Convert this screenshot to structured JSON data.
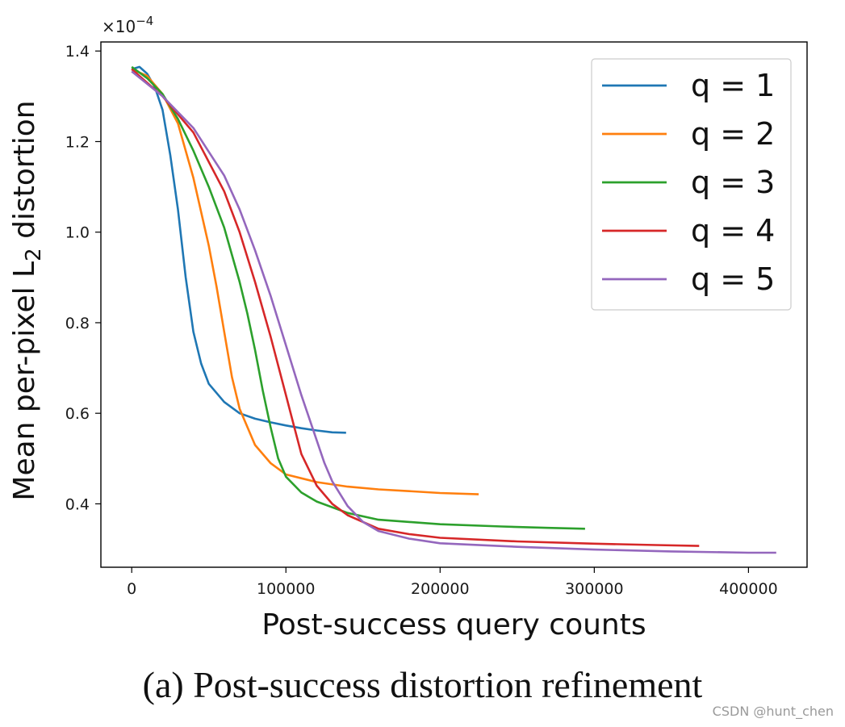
{
  "chart_data": {
    "type": "line",
    "xlabel": "Post-success query counts",
    "ylabel_main": "Mean per-pixel L",
    "ylabel_sub": "2",
    "ylabel_tail": " distortion",
    "y_scale_label": "×10",
    "y_scale_exponent": "−4",
    "xlim": [
      -20000,
      438000
    ],
    "ylim": [
      0.26,
      1.42
    ],
    "x_ticks": [
      0,
      100000,
      200000,
      300000,
      400000
    ],
    "x_tick_labels": [
      "0",
      "100000",
      "200000",
      "300000",
      "400000"
    ],
    "y_ticks": [
      0.4,
      0.6,
      0.8,
      1.0,
      1.2,
      1.4
    ],
    "y_tick_labels": [
      "0.4",
      "0.6",
      "0.8",
      "1.0",
      "1.2",
      "1.4"
    ],
    "legend_position": "upper right",
    "series": [
      {
        "name": "q = 1",
        "color": "#1f77b4",
        "x": [
          0,
          5000,
          10000,
          15000,
          20000,
          25000,
          30000,
          35000,
          40000,
          45000,
          50000,
          60000,
          70000,
          80000,
          90000,
          100000,
          110000,
          120000,
          130000,
          139000
        ],
        "y": [
          1.36,
          1.365,
          1.35,
          1.32,
          1.27,
          1.17,
          1.05,
          0.9,
          0.78,
          0.71,
          0.665,
          0.625,
          0.6,
          0.588,
          0.58,
          0.573,
          0.567,
          0.562,
          0.558,
          0.557
        ]
      },
      {
        "name": "q = 2",
        "color": "#ff7f0e",
        "x": [
          0,
          10000,
          20000,
          30000,
          40000,
          50000,
          55000,
          60000,
          65000,
          70000,
          80000,
          90000,
          100000,
          120000,
          140000,
          160000,
          180000,
          200000,
          225000
        ],
        "y": [
          1.36,
          1.345,
          1.305,
          1.24,
          1.12,
          0.97,
          0.88,
          0.78,
          0.68,
          0.61,
          0.53,
          0.49,
          0.465,
          0.448,
          0.438,
          0.432,
          0.428,
          0.424,
          0.421
        ]
      },
      {
        "name": "q = 3",
        "color": "#2ca02c",
        "x": [
          0,
          10000,
          20000,
          30000,
          40000,
          50000,
          60000,
          70000,
          75000,
          80000,
          85000,
          90000,
          95000,
          100000,
          110000,
          120000,
          140000,
          160000,
          200000,
          240000,
          270000,
          294000
        ],
        "y": [
          1.365,
          1.34,
          1.305,
          1.25,
          1.18,
          1.1,
          1.01,
          0.89,
          0.82,
          0.74,
          0.65,
          0.57,
          0.5,
          0.46,
          0.425,
          0.405,
          0.38,
          0.365,
          0.355,
          0.35,
          0.347,
          0.345
        ]
      },
      {
        "name": "q = 4",
        "color": "#d62728",
        "x": [
          0,
          20000,
          40000,
          60000,
          70000,
          80000,
          90000,
          100000,
          105000,
          110000,
          120000,
          130000,
          140000,
          160000,
          180000,
          200000,
          250000,
          300000,
          340000,
          368000
        ],
        "y": [
          1.36,
          1.3,
          1.22,
          1.09,
          1.0,
          0.89,
          0.77,
          0.64,
          0.575,
          0.51,
          0.44,
          0.4,
          0.375,
          0.345,
          0.333,
          0.325,
          0.317,
          0.312,
          0.309,
          0.307
        ]
      },
      {
        "name": "q = 5",
        "color": "#9467bd",
        "x": [
          0,
          20000,
          40000,
          60000,
          70000,
          80000,
          90000,
          100000,
          110000,
          120000,
          125000,
          130000,
          140000,
          150000,
          160000,
          180000,
          200000,
          250000,
          300000,
          350000,
          400000,
          418000
        ],
        "y": [
          1.355,
          1.3,
          1.23,
          1.125,
          1.05,
          0.96,
          0.86,
          0.75,
          0.64,
          0.54,
          0.49,
          0.45,
          0.395,
          0.36,
          0.34,
          0.323,
          0.313,
          0.305,
          0.299,
          0.295,
          0.292,
          0.292
        ]
      }
    ]
  },
  "caption": "(a) Post-success distortion refinement",
  "watermark": "CSDN @hunt_chen"
}
